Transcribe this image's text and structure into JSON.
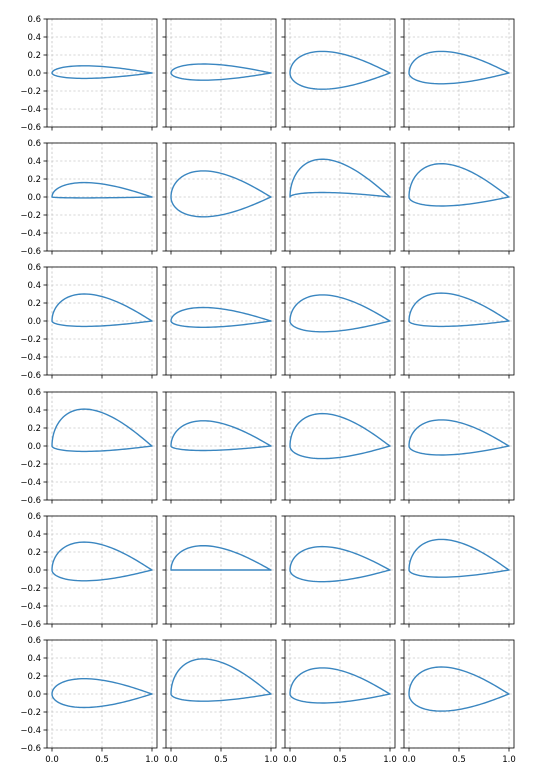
{
  "figure": {
    "line_color": "#3a86c0",
    "rows": 6,
    "cols": 4,
    "sharex": true,
    "sharey": true,
    "grid": true,
    "xlim": [
      -0.05,
      1.05
    ],
    "ylim": [
      -0.6,
      0.6
    ],
    "xticks": [
      0.0,
      0.5,
      1.0
    ],
    "xtick_labels": [
      "0.0",
      "0.5",
      "1.0"
    ],
    "yticks": [
      0.6,
      0.4,
      0.2,
      0.0,
      -0.2,
      -0.4,
      -0.6
    ],
    "ytick_labels": [
      "0.6",
      "0.4",
      "0.2",
      "0.0",
      "−0.2",
      "−0.4",
      "−0.6"
    ]
  },
  "chart_data": [
    {
      "type": "line",
      "upper_max": 0.08,
      "lower_min": -0.06,
      "trailing_edge_y": 0.0
    },
    {
      "type": "line",
      "upper_max": 0.1,
      "lower_min": -0.08,
      "trailing_edge_y": 0.0
    },
    {
      "type": "line",
      "upper_max": 0.24,
      "lower_min": -0.18,
      "trailing_edge_y": 0.0
    },
    {
      "type": "line",
      "upper_max": 0.24,
      "lower_min": -0.12,
      "trailing_edge_y": 0.0
    },
    {
      "type": "line",
      "upper_max": 0.16,
      "lower_min": -0.01,
      "trailing_edge_y": 0.0
    },
    {
      "type": "line",
      "upper_max": 0.29,
      "lower_min": -0.22,
      "trailing_edge_y": 0.0
    },
    {
      "type": "line",
      "upper_max": 0.42,
      "lower_min": 0.05,
      "trailing_edge_y": 0.0
    },
    {
      "type": "line",
      "upper_max": 0.37,
      "lower_min": -0.1,
      "trailing_edge_y": 0.0
    },
    {
      "type": "line",
      "upper_max": 0.3,
      "lower_min": -0.06,
      "trailing_edge_y": 0.0
    },
    {
      "type": "line",
      "upper_max": 0.15,
      "lower_min": -0.07,
      "trailing_edge_y": 0.0
    },
    {
      "type": "line",
      "upper_max": 0.29,
      "lower_min": -0.12,
      "trailing_edge_y": 0.0
    },
    {
      "type": "line",
      "upper_max": 0.31,
      "lower_min": -0.06,
      "trailing_edge_y": 0.0
    },
    {
      "type": "line",
      "upper_max": 0.41,
      "lower_min": -0.06,
      "trailing_edge_y": 0.0
    },
    {
      "type": "line",
      "upper_max": 0.28,
      "lower_min": -0.05,
      "trailing_edge_y": 0.0
    },
    {
      "type": "line",
      "upper_max": 0.36,
      "lower_min": -0.14,
      "trailing_edge_y": 0.0
    },
    {
      "type": "line",
      "upper_max": 0.29,
      "lower_min": -0.1,
      "trailing_edge_y": 0.0
    },
    {
      "type": "line",
      "upper_max": 0.31,
      "lower_min": -0.12,
      "trailing_edge_y": 0.0
    },
    {
      "type": "line",
      "upper_max": 0.27,
      "lower_min": 0.0,
      "trailing_edge_y": 0.0
    },
    {
      "type": "line",
      "upper_max": 0.26,
      "lower_min": -0.13,
      "trailing_edge_y": 0.0
    },
    {
      "type": "line",
      "upper_max": 0.34,
      "lower_min": -0.08,
      "trailing_edge_y": 0.0
    },
    {
      "type": "line",
      "upper_max": 0.17,
      "lower_min": -0.15,
      "trailing_edge_y": 0.0
    },
    {
      "type": "line",
      "upper_max": 0.39,
      "lower_min": -0.08,
      "trailing_edge_y": 0.0
    },
    {
      "type": "line",
      "upper_max": 0.29,
      "lower_min": -0.1,
      "trailing_edge_y": 0.0
    },
    {
      "type": "line",
      "upper_max": 0.3,
      "lower_min": -0.19,
      "trailing_edge_y": 0.0
    }
  ]
}
